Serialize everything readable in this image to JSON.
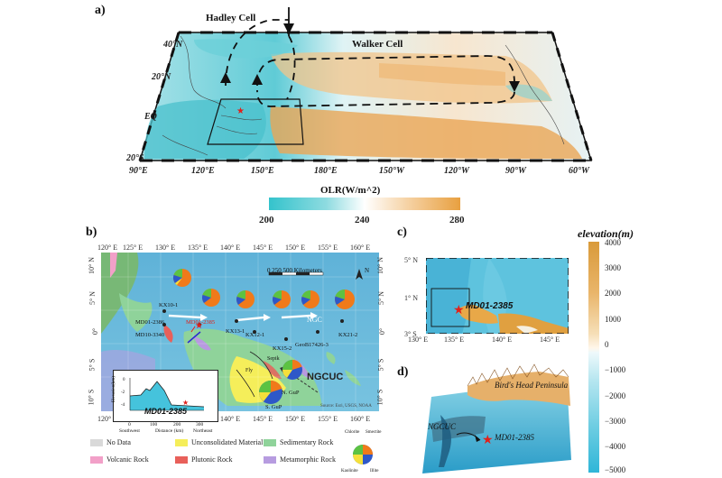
{
  "panel_a": {
    "label": "a)",
    "hadley": "Hadley Cell",
    "walker": "Walker Cell",
    "lat_ticks": [
      "40°N",
      "20°N",
      "EQ",
      "20°S"
    ],
    "lon_ticks": [
      "90°E",
      "120°E",
      "150°E",
      "180°E",
      "150°W",
      "120°W",
      "90°W",
      "60°W"
    ]
  },
  "olr_bar": {
    "title": "OLR(W/m^2)",
    "ticks": [
      "200",
      "240",
      "280"
    ],
    "colors": [
      "#34c3cc",
      "#ffffff",
      "#e8a040"
    ]
  },
  "panel_b": {
    "label": "b)",
    "lon_ticks": [
      "120° E",
      "125° E",
      "130° E",
      "135° E",
      "140° E",
      "145° E",
      "150° E",
      "155° E",
      "160° E"
    ],
    "lat_ticks": [
      "10° N",
      "5° N",
      "0°",
      "5° S",
      "10° S"
    ],
    "scale": "0  250  500 Kilometers",
    "north": "N",
    "stations": [
      "KX10-1",
      "MD01-2386",
      "MD10-3340",
      "MD01-2385",
      "KX13-1",
      "KX12-1",
      "KX15-2",
      "GeoB17426-3",
      "KX21-2"
    ],
    "ngcuc": "NGCUC",
    "ngc": "NGC",
    "ngcc": "N. GuP",
    "sguP": "S. GuP",
    "fly": "Fly",
    "sepik": "Sepik",
    "inset": {
      "ylabel": "Elevation(km)",
      "xlabel": "Distance (km)",
      "x_ticks": [
        "0",
        "100",
        "200",
        "300"
      ],
      "y_ticks": [
        "0",
        "-2",
        "-4"
      ],
      "left": "Southwest",
      "right": "Northeast",
      "site": "MD01-2385"
    },
    "credit": "Source: Esri, USGS, NOAA"
  },
  "legend": {
    "items": [
      "No Data",
      "Volcanic Rock",
      "Unconsolidated Material",
      "Plutonic Rock",
      "Sedimentary Rock",
      "Metamorphic Rock"
    ],
    "colors": [
      "#d9d9d9",
      "#f2a0c8",
      "#f5ee5a",
      "#e8605a",
      "#8fd39a",
      "#b79ce0"
    ],
    "pie_labels": [
      "Chlorite",
      "Smectite",
      "Kaolinite",
      "Illite"
    ],
    "pie_colors": [
      "#2e58c8",
      "#f07a1a",
      "#f5e03a",
      "#5cc242"
    ]
  },
  "panel_c": {
    "label": "c)",
    "lat_ticks": [
      "5° N",
      "1° N",
      "3° S"
    ],
    "lon_ticks": [
      "130° E",
      "135° E",
      "140° E",
      "145° E"
    ],
    "site": "MD01-2385"
  },
  "elevation_bar": {
    "title": "elevation(m)",
    "ticks": [
      "4000",
      "3000",
      "2000",
      "1000",
      "0",
      "−1000",
      "−2000",
      "−3000",
      "−4000",
      "−5000"
    ]
  },
  "panel_d": {
    "label": "d)",
    "peninsula": "Bird's Head Peninsula",
    "ngcuc": "NGCUC",
    "site": "MD01-2385"
  }
}
